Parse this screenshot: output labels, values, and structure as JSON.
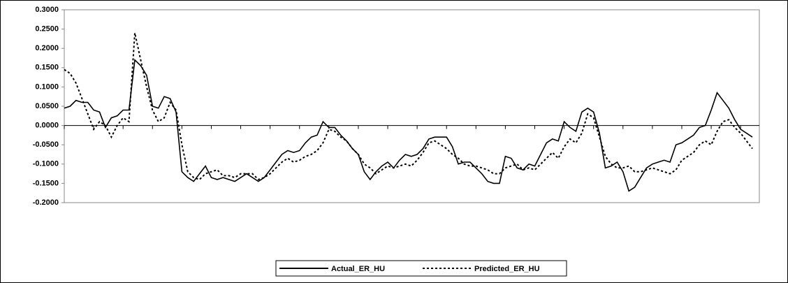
{
  "chart_data": {
    "type": "line",
    "series": [
      {
        "name": "Actual_ER_HU",
        "color": "#000000",
        "dash": "solid",
        "values": [
          0.045,
          0.05,
          0.065,
          0.06,
          0.06,
          0.04,
          0.035,
          -0.005,
          0.02,
          0.025,
          0.04,
          0.04,
          0.17,
          0.155,
          0.13,
          0.05,
          0.045,
          0.075,
          0.07,
          0.035,
          -0.12,
          -0.135,
          -0.145,
          -0.125,
          -0.105,
          -0.135,
          -0.14,
          -0.135,
          -0.14,
          -0.145,
          -0.135,
          -0.125,
          -0.135,
          -0.145,
          -0.135,
          -0.115,
          -0.095,
          -0.075,
          -0.065,
          -0.07,
          -0.065,
          -0.045,
          -0.03,
          -0.025,
          0.01,
          -0.005,
          -0.005,
          -0.025,
          -0.04,
          -0.06,
          -0.075,
          -0.12,
          -0.14,
          -0.12,
          -0.105,
          -0.095,
          -0.11,
          -0.09,
          -0.075,
          -0.08,
          -0.075,
          -0.06,
          -0.035,
          -0.03,
          -0.03,
          -0.03,
          -0.055,
          -0.1,
          -0.095,
          -0.095,
          -0.11,
          -0.125,
          -0.145,
          -0.15,
          -0.15,
          -0.08,
          -0.085,
          -0.11,
          -0.115,
          -0.1,
          -0.105,
          -0.075,
          -0.045,
          -0.035,
          -0.04,
          0.01,
          -0.005,
          -0.015,
          0.035,
          0.045,
          0.035,
          -0.02,
          -0.11,
          -0.105,
          -0.095,
          -0.12,
          -0.17,
          -0.16,
          -0.135,
          -0.11,
          -0.1,
          -0.095,
          -0.09,
          -0.095,
          -0.05,
          -0.045,
          -0.035,
          -0.025,
          -0.005,
          0.0,
          0.04,
          0.085,
          0.065,
          0.045,
          0.015,
          -0.01,
          -0.02,
          -0.03
        ]
      },
      {
        "name": "Predicted_ER_HU",
        "color": "#000000",
        "dash": "dotted",
        "values": [
          0.145,
          0.135,
          0.11,
          0.07,
          0.03,
          -0.01,
          0.01,
          0.0,
          -0.03,
          0.0,
          0.02,
          0.01,
          0.24,
          0.17,
          0.1,
          0.04,
          0.01,
          0.02,
          0.06,
          0.04,
          -0.05,
          -0.12,
          -0.135,
          -0.14,
          -0.125,
          -0.12,
          -0.115,
          -0.13,
          -0.13,
          -0.135,
          -0.125,
          -0.125,
          -0.125,
          -0.14,
          -0.135,
          -0.125,
          -0.11,
          -0.095,
          -0.085,
          -0.095,
          -0.09,
          -0.08,
          -0.075,
          -0.065,
          -0.045,
          -0.01,
          -0.015,
          -0.03,
          -0.04,
          -0.06,
          -0.075,
          -0.1,
          -0.11,
          -0.125,
          -0.115,
          -0.105,
          -0.11,
          -0.105,
          -0.1,
          -0.105,
          -0.09,
          -0.07,
          -0.045,
          -0.04,
          -0.05,
          -0.06,
          -0.075,
          -0.085,
          -0.1,
          -0.105,
          -0.105,
          -0.11,
          -0.115,
          -0.125,
          -0.125,
          -0.11,
          -0.105,
          -0.1,
          -0.115,
          -0.11,
          -0.115,
          -0.1,
          -0.085,
          -0.07,
          -0.085,
          -0.055,
          -0.035,
          -0.045,
          -0.02,
          0.03,
          0.02,
          -0.03,
          -0.08,
          -0.1,
          -0.11,
          -0.11,
          -0.105,
          -0.12,
          -0.12,
          -0.115,
          -0.11,
          -0.115,
          -0.12,
          -0.125,
          -0.115,
          -0.09,
          -0.08,
          -0.07,
          -0.05,
          -0.04,
          -0.05,
          -0.015,
          0.01,
          0.015,
          -0.005,
          -0.02,
          -0.04,
          -0.06
        ]
      }
    ],
    "ylim": [
      -0.2,
      0.3
    ],
    "yticks": [
      {
        "value": 0.3,
        "label": "0.3000"
      },
      {
        "value": 0.25,
        "label": "0.2500"
      },
      {
        "value": 0.2,
        "label": "0.2000"
      },
      {
        "value": 0.15,
        "label": "0.1500"
      },
      {
        "value": 0.1,
        "label": "0.1000"
      },
      {
        "value": 0.05,
        "label": "0.0500"
      },
      {
        "value": 0.0,
        "label": "0.0000"
      },
      {
        "value": -0.05,
        "label": "-0.0500"
      },
      {
        "value": -0.1,
        "label": "-0.1000"
      },
      {
        "value": -0.15,
        "label": "-0.1500"
      },
      {
        "value": -0.2,
        "label": "-0.2000"
      }
    ],
    "legend": "bottom"
  }
}
